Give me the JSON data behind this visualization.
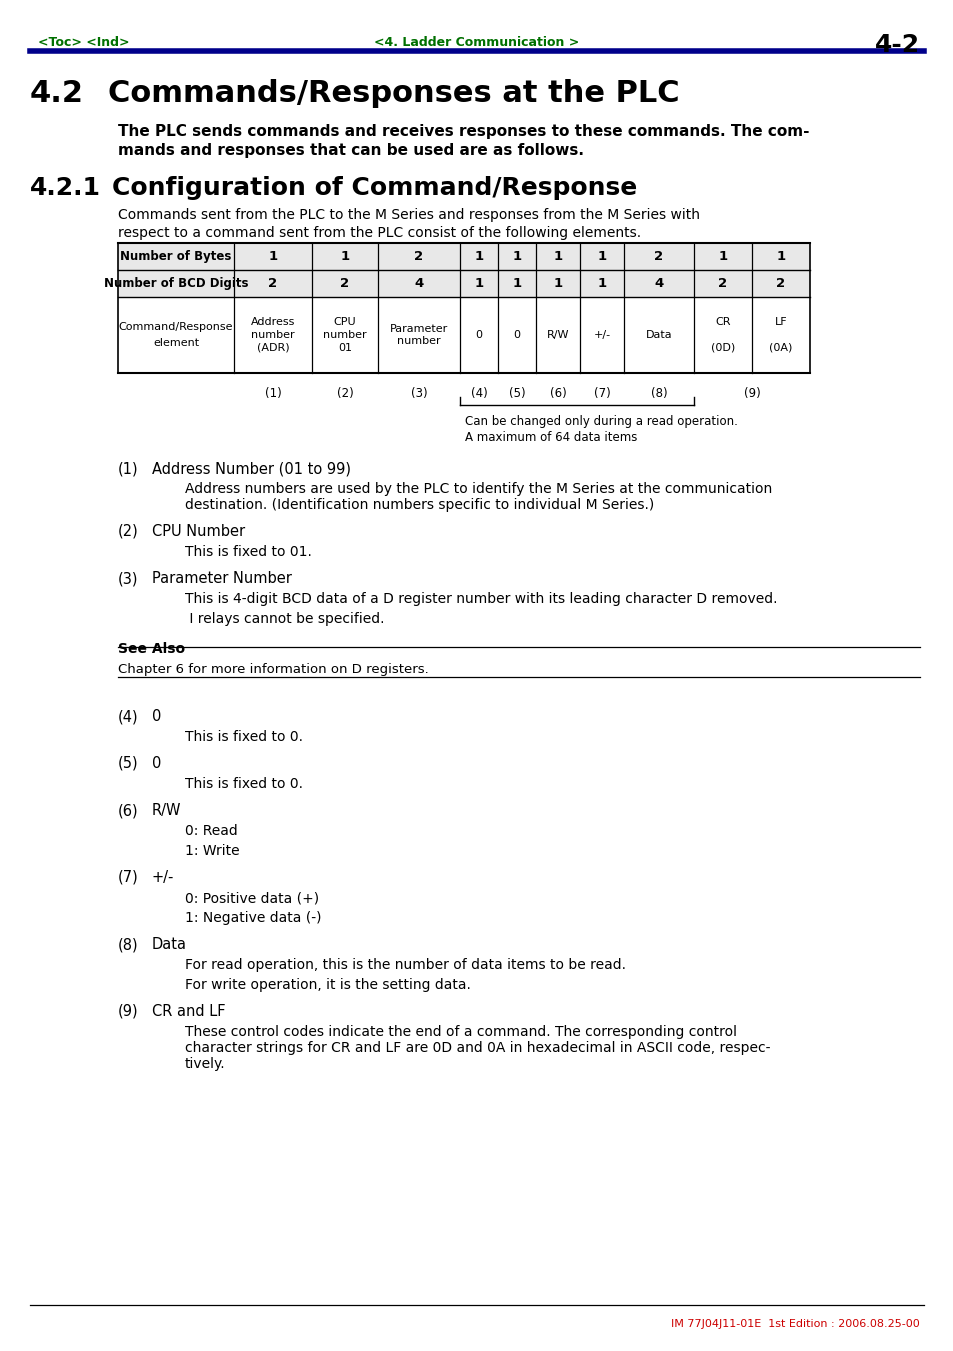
{
  "page_header_left": "<Toc> <Ind>",
  "page_header_center": "<4. Ladder Communication >",
  "page_header_right": "4-2",
  "header_color": "#007000",
  "header_line_color": "#00008B",
  "section_title_num": "4.2",
  "section_title_text": "Commands/Responses at the PLC",
  "section_intro_line1": "The PLC sends commands and receives responses to these commands. The com-",
  "section_intro_line2": "mands and responses that can be used are as follows.",
  "subsection_title_num": "4.2.1",
  "subsection_title_text": "Configuration of Command/Response",
  "subsection_intro_line1": "Commands sent from the PLC to the M Series and responses from the M Series with",
  "subsection_intro_line2": "respect to a command sent from the PLC consist of the following elements.",
  "table_row1_label": "Number of Bytes",
  "table_row1_vals": [
    "1",
    "1",
    "2",
    "1",
    "1",
    "1",
    "1",
    "2",
    "1",
    "1"
  ],
  "table_row2_label": "Number of BCD Digits",
  "table_row2_vals": [
    "2",
    "2",
    "4",
    "1",
    "1",
    "1",
    "1",
    "4",
    "2",
    "2"
  ],
  "bracket_note_line1": "Can be changed only during a read operation.",
  "bracket_note_line2": "A maximum of 64 data items",
  "see_also_title": "See Also",
  "see_also_body": "Chapter 6 for more information on D registers.",
  "footer": "IM 77J04J11-01E  1st Edition : 2006.08.25-00",
  "footer_color": "#CC0000",
  "bg_color": "#ffffff",
  "text_color": "#000000",
  "green_color": "#007000",
  "navy_color": "#00008B"
}
